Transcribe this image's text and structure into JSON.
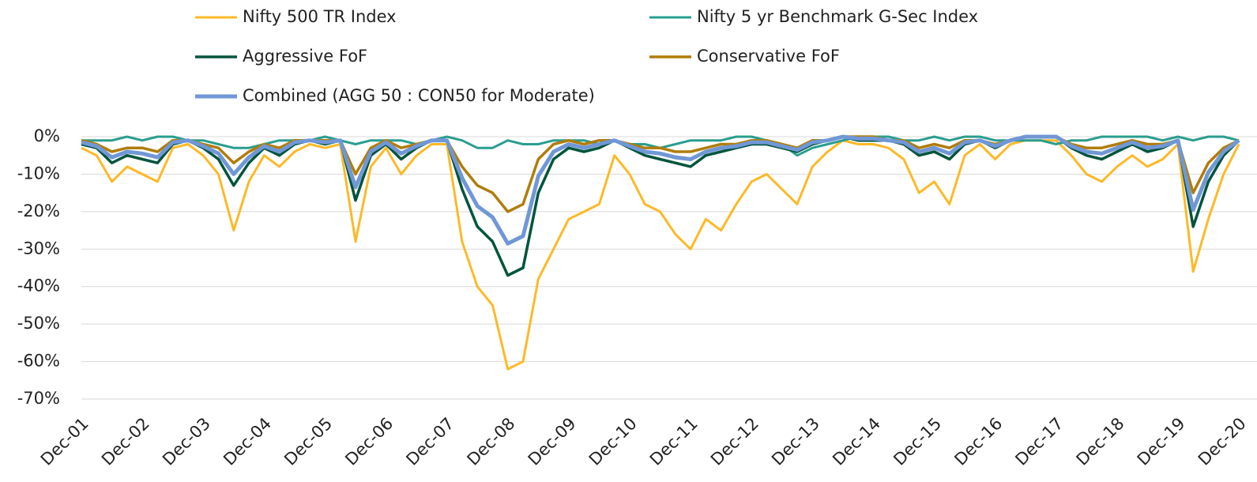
{
  "chart_data": {
    "type": "line",
    "categories": [
      "Dec-01",
      null,
      null,
      null,
      "Dec-02",
      null,
      null,
      null,
      "Dec-03",
      null,
      null,
      null,
      "Dec-04",
      null,
      null,
      null,
      "Dec-05",
      null,
      null,
      null,
      "Dec-06",
      null,
      null,
      null,
      "Dec-07",
      null,
      null,
      null,
      "Dec-08",
      null,
      null,
      null,
      "Dec-09",
      null,
      null,
      null,
      "Dec-10",
      null,
      null,
      null,
      "Dec-11",
      null,
      null,
      null,
      "Dec-12",
      null,
      null,
      null,
      "Dec-13",
      null,
      null,
      null,
      "Dec-14",
      null,
      null,
      null,
      "Dec-15",
      null,
      null,
      null,
      "Dec-16",
      null,
      null,
      null,
      "Dec-17",
      null,
      null,
      null,
      "Dec-18",
      null,
      null,
      null,
      "Dec-19",
      null,
      null,
      null,
      "Dec-20"
    ],
    "series": [
      {
        "name": "Nifty 500 TR Index",
        "color": "#FDB927",
        "width": 3,
        "values": [
          -3,
          -5,
          -12,
          -8,
          -10,
          -12,
          -3,
          -2,
          -5,
          -10,
          -25,
          -12,
          -5,
          -8,
          -4,
          -2,
          -3,
          -2,
          -28,
          -8,
          -3,
          -10,
          -5,
          -2,
          -2,
          -28,
          -40,
          -45,
          -62,
          -60,
          -38,
          -30,
          -22,
          -20,
          -18,
          -5,
          -10,
          -18,
          -20,
          -26,
          -30,
          -22,
          -25,
          -18,
          -12,
          -10,
          -14,
          -18,
          -8,
          -4,
          -1,
          -2,
          -2,
          -3,
          -6,
          -15,
          -12,
          -18,
          -5,
          -2,
          -6,
          -2,
          -1,
          -1,
          -1,
          -5,
          -10,
          -12,
          -8,
          -5,
          -8,
          -6,
          -2,
          -36,
          -22,
          -10,
          -2
        ]
      },
      {
        "name": "Nifty 5 yr Benchmark G-Sec Index",
        "color": "#2A9D8F",
        "width": 3,
        "values": [
          -1,
          -1,
          -1,
          0,
          -1,
          0,
          0,
          -1,
          -1,
          -2,
          -3,
          -3,
          -2,
          -1,
          -1,
          -1,
          0,
          -1,
          -2,
          -1,
          -1,
          -1,
          -2,
          -1,
          0,
          -1,
          -3,
          -3,
          -1,
          -2,
          -2,
          -1,
          -1,
          -1,
          -2,
          -1,
          -2,
          -2,
          -3,
          -2,
          -1,
          -1,
          -1,
          0,
          0,
          -1,
          -2,
          -5,
          -3,
          -2,
          -1,
          0,
          0,
          0,
          -1,
          -1,
          0,
          -1,
          0,
          0,
          -1,
          -1,
          -1,
          -1,
          -2,
          -1,
          -1,
          0,
          0,
          0,
          0,
          -1,
          0,
          -1,
          0,
          0,
          -1
        ]
      },
      {
        "name": "Aggressive FoF",
        "color": "#00543C",
        "width": 3.5,
        "values": [
          -2,
          -3,
          -7,
          -5,
          -6,
          -7,
          -2,
          -1,
          -3,
          -6,
          -13,
          -7,
          -3,
          -5,
          -2,
          -1,
          -2,
          -1,
          -17,
          -5,
          -2,
          -6,
          -3,
          -1,
          -1,
          -14,
          -24,
          -28,
          -37,
          -35,
          -15,
          -6,
          -3,
          -4,
          -3,
          -1,
          -3,
          -5,
          -6,
          -7,
          -8,
          -5,
          -4,
          -3,
          -2,
          -2,
          -3,
          -4,
          -2,
          -1,
          0,
          -1,
          -1,
          -1,
          -2,
          -5,
          -4,
          -6,
          -2,
          -1,
          -3,
          -1,
          0,
          0,
          0,
          -3,
          -5,
          -6,
          -4,
          -2,
          -4,
          -3,
          -1,
          -24,
          -12,
          -5,
          -1
        ]
      },
      {
        "name": "Conservative FoF",
        "color": "#B07D0A",
        "width": 3.5,
        "values": [
          -1,
          -2,
          -4,
          -3,
          -3,
          -4,
          -1,
          -1,
          -2,
          -3,
          -7,
          -4,
          -2,
          -3,
          -1,
          -1,
          -1,
          -1,
          -10,
          -3,
          -1,
          -3,
          -2,
          -1,
          -1,
          -8,
          -13,
          -15,
          -20,
          -18,
          -6,
          -2,
          -1,
          -2,
          -1,
          -1,
          -2,
          -3,
          -3,
          -4,
          -4,
          -3,
          -2,
          -2,
          -1,
          -1,
          -2,
          -3,
          -1,
          -1,
          0,
          0,
          0,
          -1,
          -1,
          -3,
          -2,
          -3,
          -1,
          -1,
          -2,
          -1,
          0,
          0,
          0,
          -2,
          -3,
          -3,
          -2,
          -1,
          -2,
          -2,
          -1,
          -15,
          -7,
          -3,
          -1
        ]
      },
      {
        "name": "Combined (AGG 50 : CON50 for Moderate)",
        "color": "#7097D6",
        "width": 5,
        "values": [
          -1.5,
          -2.5,
          -5.5,
          -4,
          -4.5,
          -5.5,
          -1.5,
          -1,
          -2.5,
          -4.5,
          -10,
          -5.5,
          -2.5,
          -4,
          -1.5,
          -1,
          -1.5,
          -1,
          -13.5,
          -4,
          -1.5,
          -4.5,
          -2.5,
          -1,
          -1,
          -11,
          -18.5,
          -21.5,
          -28.5,
          -26.5,
          -10.5,
          -4,
          -2,
          -3,
          -2,
          -1,
          -2.5,
          -4,
          -4.5,
          -5.5,
          -6,
          -4,
          -3,
          -2.5,
          -1.5,
          -1.5,
          -2.5,
          -3.5,
          -1.5,
          -1,
          0,
          -0.5,
          -0.5,
          -1,
          -1.5,
          -4,
          -3,
          -4.5,
          -1.5,
          -1,
          -2.5,
          -1,
          0,
          0,
          0,
          -2.5,
          -4,
          -4.5,
          -3,
          -1.5,
          -3,
          -2.5,
          -1,
          -19.5,
          -9.5,
          -4,
          -1
        ]
      }
    ],
    "ylim": [
      -70,
      0
    ],
    "yticks": [
      {
        "value": 0,
        "label": "0%"
      },
      {
        "value": -10,
        "label": "-10%"
      },
      {
        "value": -20,
        "label": "-20%"
      },
      {
        "value": -30,
        "label": "-30%"
      },
      {
        "value": -40,
        "label": "-40%"
      },
      {
        "value": -50,
        "label": "-50%"
      },
      {
        "value": -60,
        "label": "-60%"
      },
      {
        "value": -70,
        "label": "-70%"
      }
    ],
    "grid": true
  }
}
